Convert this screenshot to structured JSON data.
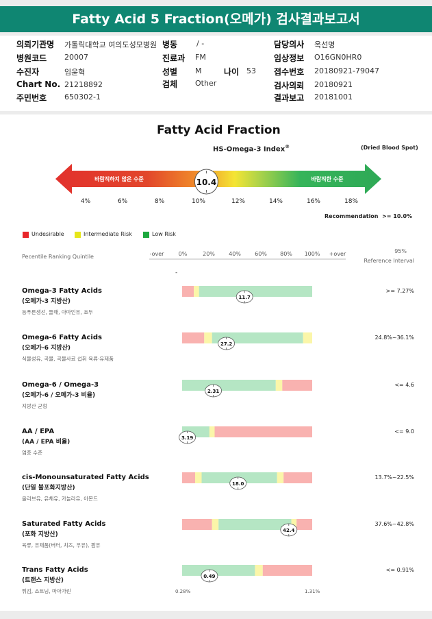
{
  "title": "Fatty Acid 5 Fraction(오메가) 검사결과보고서",
  "info": {
    "left": [
      {
        "label": "의뢰기관명",
        "value": "가톨릭대학교 여의도성모병원"
      },
      {
        "label": "병원코드",
        "value": "20007"
      },
      {
        "label": "수진자",
        "value": "임윤혁"
      },
      {
        "label": "Chart No.",
        "value": "21218892"
      },
      {
        "label": "주민번호",
        "value": "650302-1"
      }
    ],
    "ward": {
      "label": "병동",
      "value": "/ -"
    },
    "dept": {
      "label": "진료과",
      "value": "FM"
    },
    "sex": {
      "label": "성별",
      "value": "M"
    },
    "age": {
      "label": "나이",
      "value": "53"
    },
    "specimen": {
      "label": "검체",
      "value": "Other"
    },
    "right": [
      {
        "label": "담당의사",
        "value": "옥선명"
      },
      {
        "label": "임상정보",
        "value": "O16GN0HR0"
      },
      {
        "label": "접수번호",
        "value": "20180921-79047"
      },
      {
        "label": "검사의뢰",
        "value": "20180921"
      },
      {
        "label": "결과보고",
        "value": "20181001"
      }
    ]
  },
  "report": {
    "heading": "Fatty Acid Fraction",
    "index_title": "HS-Omega-3 Index",
    "index_mark": "®",
    "sample_type": "(Dried Blood Spot)",
    "arrow_left_text": "바람직하지 않은 수준",
    "arrow_right_text": "바람직한 수준",
    "index_value": "10.4",
    "scale_ticks": [
      "4%",
      "6%",
      "8%",
      "10%",
      "12%",
      "14%",
      "16%",
      "18%"
    ],
    "recommendation_label": "Recommendation",
    "recommendation_value": ">= 10.0%",
    "legend": [
      {
        "label": "Undesirable",
        "color": "#e8262a"
      },
      {
        "label": "Intermediate Risk",
        "color": "#e6e619"
      },
      {
        "label": "Low Risk",
        "color": "#1ca83e"
      }
    ],
    "percentile_label": "Pecentile Ranking Quintile",
    "percentile_ticks": [
      "-over",
      "0%",
      "20%",
      "40%",
      "60%",
      "80%",
      "100%",
      "+over"
    ],
    "ref_header": [
      "95%",
      "Reference Interval"
    ],
    "dash": "-",
    "bottom_left": "0.28%",
    "bottom_right": "1.31%"
  },
  "colors": {
    "undesirable": "#f9b2b0",
    "intermediate": "#fbf6a9",
    "low": "#b5e6c4",
    "header": "#0f8672"
  },
  "chart_data": {
    "type": "bar",
    "scale": {
      "labels": [
        "-over",
        "0%",
        "20%",
        "40%",
        "60%",
        "80%",
        "100%",
        "+over"
      ]
    },
    "items": [
      {
        "name": "Omega-3 Fatty Acids",
        "sub": "(오메가-3 지방산)",
        "desc": "등푸른생선, 들깨, 아마인유, 호두",
        "value": "11.7",
        "marker": 48,
        "ref": ">= 7.27%",
        "zones": [
          {
            "from": 0,
            "to": 9,
            "z": "undesirable"
          },
          {
            "from": 9,
            "to": 13,
            "z": "intermediate"
          },
          {
            "from": 13,
            "to": 100,
            "z": "low"
          }
        ]
      },
      {
        "name": "Omega-6 Fatty Acids",
        "sub": "(오메가-6 지방산)",
        "desc": "식물성유, 곡물, 곡물사료 섭취 육류·유제품",
        "value": "27.2",
        "marker": 34,
        "ref": "24.8%~36.1%",
        "zones": [
          {
            "from": 0,
            "to": 17,
            "z": "undesirable"
          },
          {
            "from": 17,
            "to": 23,
            "z": "intermediate"
          },
          {
            "from": 23,
            "to": 93,
            "z": "low"
          },
          {
            "from": 93,
            "to": 100,
            "z": "intermediate"
          }
        ]
      },
      {
        "name": "Omega-6 / Omega-3",
        "sub": "(오메가-6 / 오메가-3 비율)",
        "desc": "지방산 균형",
        "value": "2.31",
        "marker": 24,
        "ref": "<= 4.6",
        "zones": [
          {
            "from": 0,
            "to": 72,
            "z": "low"
          },
          {
            "from": 72,
            "to": 77,
            "z": "intermediate"
          },
          {
            "from": 77,
            "to": 100,
            "z": "undesirable"
          }
        ]
      },
      {
        "name": "AA / EPA",
        "sub": "(AA / EPA 비율)",
        "desc": "염증 수준",
        "value": "3.19",
        "marker": 4,
        "ref": "<= 9.0",
        "zones": [
          {
            "from": 0,
            "to": 21,
            "z": "low"
          },
          {
            "from": 21,
            "to": 25,
            "z": "intermediate"
          },
          {
            "from": 25,
            "to": 100,
            "z": "undesirable"
          }
        ]
      },
      {
        "name": "cis-Monounsaturated Fatty Acids",
        "sub": "(단일 불포화지방산)",
        "desc": "올리브유, 유채유, 카놀라유, 아몬드",
        "value": "18.0",
        "marker": 43,
        "ref": "13.7%~22.5%",
        "zones": [
          {
            "from": 0,
            "to": 10,
            "z": "undesirable"
          },
          {
            "from": 10,
            "to": 15,
            "z": "intermediate"
          },
          {
            "from": 15,
            "to": 73,
            "z": "low"
          },
          {
            "from": 73,
            "to": 78,
            "z": "intermediate"
          },
          {
            "from": 78,
            "to": 100,
            "z": "undesirable"
          }
        ]
      },
      {
        "name": "Saturated Fatty Acids",
        "sub": "(포화 지방산)",
        "desc": "육류, 유제품(버터, 치즈, 우유), 팜유",
        "value": "42.4",
        "marker": 82,
        "ref": "37.6%~42.8%",
        "zones": [
          {
            "from": 0,
            "to": 23,
            "z": "undesirable"
          },
          {
            "from": 23,
            "to": 28,
            "z": "intermediate"
          },
          {
            "from": 28,
            "to": 84,
            "z": "low"
          },
          {
            "from": 84,
            "to": 88,
            "z": "intermediate"
          },
          {
            "from": 88,
            "to": 100,
            "z": "undesirable"
          }
        ]
      },
      {
        "name": "Trans Fatty Acids",
        "sub": "(트랜스 지방산)",
        "desc": "튀김, 쇼트닝, 마아가린",
        "value": "0.49",
        "marker": 21,
        "ref": "<= 0.91%",
        "zones": [
          {
            "from": 0,
            "to": 56,
            "z": "low"
          },
          {
            "from": 56,
            "to": 62,
            "z": "intermediate"
          },
          {
            "from": 62,
            "to": 100,
            "z": "undesirable"
          }
        ]
      }
    ]
  }
}
